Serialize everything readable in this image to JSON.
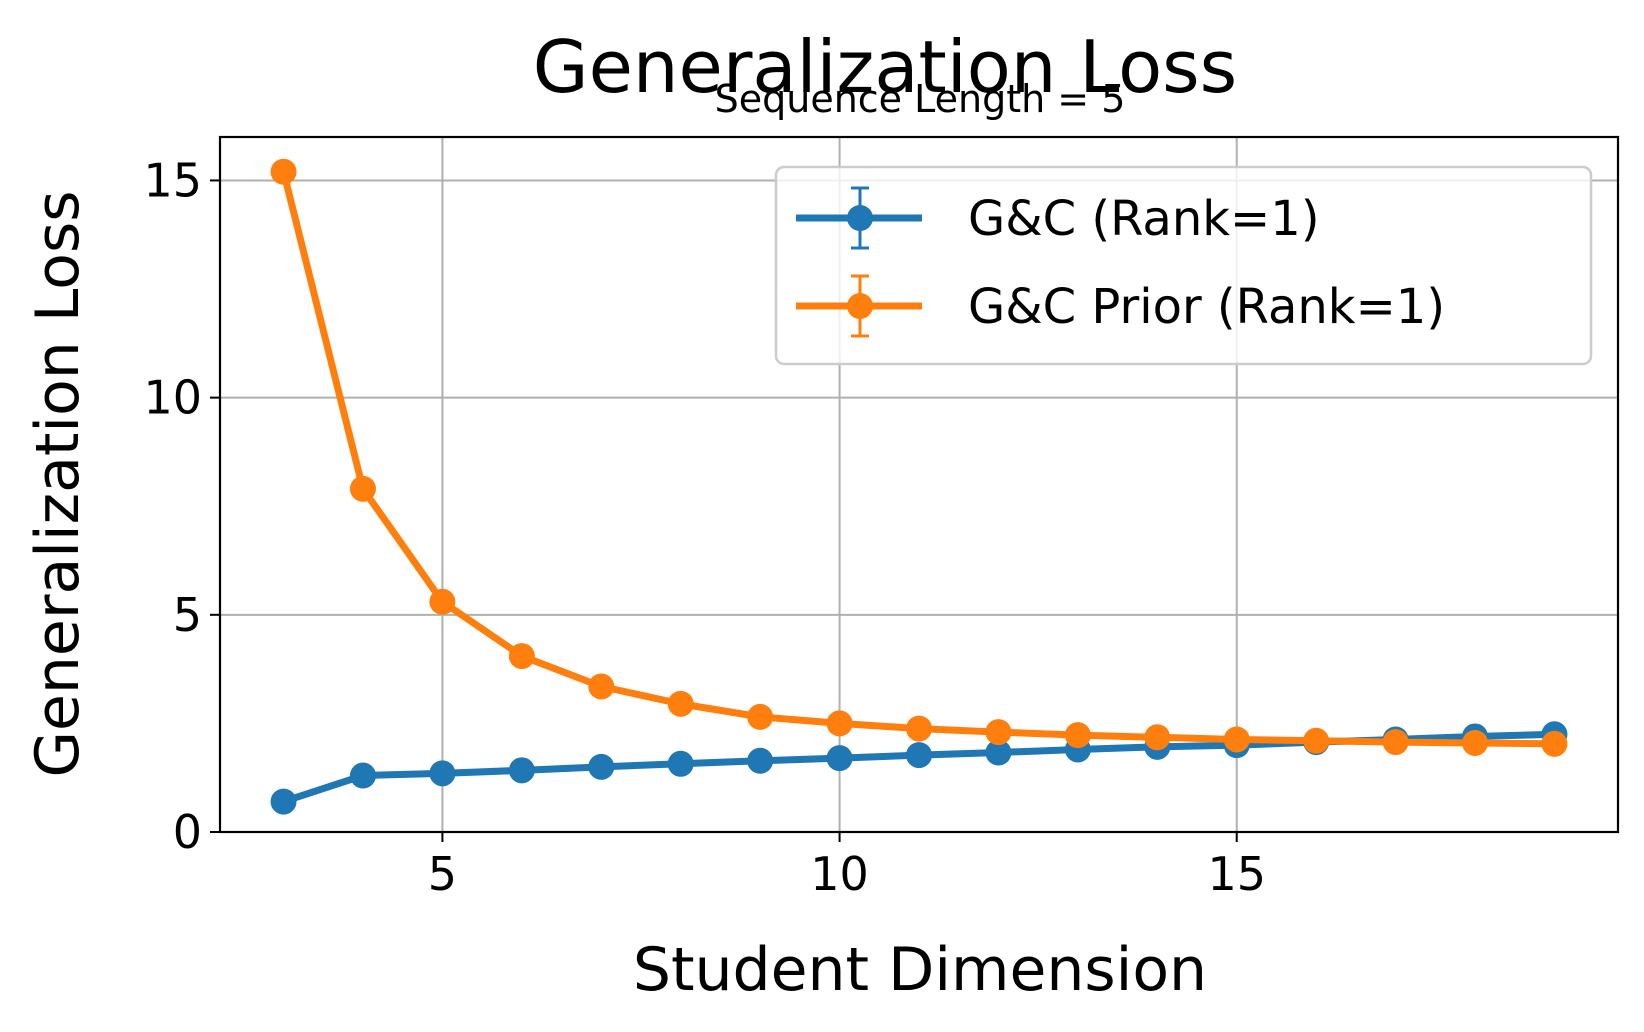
{
  "chart_data": {
    "type": "line",
    "title": "Generalization Loss",
    "subtitle": "Sequence Length = 5",
    "xlabel": "Student Dimension",
    "ylabel": "Generalization Loss",
    "xlim": [
      2.2,
      19.8
    ],
    "ylim": [
      0,
      16
    ],
    "xticks": [
      5,
      10,
      15
    ],
    "yticks": [
      0,
      5,
      10,
      15
    ],
    "grid": true,
    "legend_position": "top-right",
    "x": [
      3,
      4,
      5,
      6,
      7,
      8,
      9,
      10,
      11,
      12,
      13,
      14,
      15,
      16,
      17,
      18,
      19
    ],
    "series": [
      {
        "name": "G&C (Rank=1)",
        "color": "#1f77b4",
        "values": [
          0.7,
          1.3,
          1.35,
          1.42,
          1.5,
          1.57,
          1.64,
          1.7,
          1.77,
          1.83,
          1.9,
          1.96,
          2.0,
          2.07,
          2.13,
          2.2,
          2.25
        ]
      },
      {
        "name": "G&C Prior (Rank=1)",
        "color": "#ff7f0e",
        "values": [
          15.2,
          7.9,
          5.3,
          4.05,
          3.35,
          2.95,
          2.65,
          2.5,
          2.38,
          2.3,
          2.23,
          2.18,
          2.13,
          2.1,
          2.07,
          2.05,
          2.03
        ]
      }
    ]
  }
}
